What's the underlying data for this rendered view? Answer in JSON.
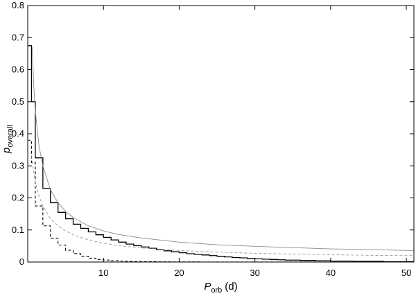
{
  "chart_data": {
    "type": "line",
    "xlabel": "P",
    "xlabel_sub": "orb",
    "xlabel_unit": "(d)",
    "ylabel": "p",
    "ylabel_sub": "overall",
    "xlim": [
      0,
      51
    ],
    "ylim": [
      0,
      0.8
    ],
    "xticks": [
      10,
      20,
      30,
      40,
      50
    ],
    "yticks": [
      0,
      0.1,
      0.2,
      0.3,
      0.4,
      0.5,
      0.6,
      0.7,
      0.8
    ],
    "grid": false,
    "series": [
      {
        "style": "step-solid-black",
        "bin_edges": [
          0,
          0.5,
          1,
          2,
          3,
          4,
          5,
          6,
          7,
          8,
          9,
          10,
          11,
          12,
          13,
          14,
          15,
          16,
          17,
          18,
          19,
          20,
          21,
          22,
          23,
          24,
          25,
          26,
          27,
          28,
          29,
          30,
          31,
          32,
          33,
          34,
          35,
          36,
          37,
          38,
          39,
          40,
          41,
          42,
          43,
          44,
          45,
          46,
          47,
          48,
          49,
          50,
          51
        ],
        "values": [
          0.675,
          0.5,
          0.325,
          0.23,
          0.185,
          0.155,
          0.135,
          0.118,
          0.105,
          0.094,
          0.085,
          0.077,
          0.069,
          0.062,
          0.056,
          0.051,
          0.047,
          0.043,
          0.039,
          0.035,
          0.032,
          0.029,
          0.026,
          0.024,
          0.022,
          0.02,
          0.018,
          0.016,
          0.014,
          0.013,
          0.011,
          0.01,
          0.009,
          0.008,
          0.007,
          0.006,
          0.006,
          0.005,
          0.005,
          0.004,
          0.004,
          0.003,
          0.003,
          0.003,
          0.002,
          0.002,
          0.002,
          0.002,
          0.001,
          0.001,
          0.001,
          0.001
        ]
      },
      {
        "style": "step-dashed-black",
        "bin_edges": [
          0,
          0.5,
          1,
          2,
          3,
          4,
          5,
          6,
          7,
          8,
          9,
          10,
          11,
          12,
          13,
          14,
          15,
          16,
          17,
          18,
          19,
          20,
          21,
          22,
          23,
          24,
          25,
          26,
          27,
          28,
          29,
          30,
          31,
          32,
          33,
          34,
          35,
          36,
          37,
          38,
          39,
          40,
          41,
          42,
          43,
          44,
          45,
          46,
          47,
          48,
          49,
          50,
          51
        ],
        "values": [
          0.38,
          0.31,
          0.175,
          0.113,
          0.074,
          0.053,
          0.037,
          0.026,
          0.018,
          0.012,
          0.008,
          0.006,
          0.004,
          0.003,
          0.002,
          0.0015,
          0.001,
          0.001,
          0.0008,
          0.0006,
          0.0005,
          0.0004,
          0.0003,
          0.0003,
          0.0002,
          0.0002,
          0.0002,
          0.0001,
          0.0001,
          0.0001,
          0.0001,
          0.0001,
          0.0001,
          0.0001,
          0.0001,
          0.0001,
          0.0001,
          0.0001,
          0.0001,
          0.0001,
          0.0001,
          0.0001,
          0.0001,
          0.0001,
          0.0001,
          0.0001,
          0.0001,
          0.0001,
          0.0001,
          0.0001,
          0.0001,
          0.0001
        ]
      },
      {
        "style": "curve-solid-gray",
        "x": [
          0.6,
          0.8,
          1,
          1.5,
          2,
          3,
          4,
          5,
          6,
          8,
          10,
          12,
          15,
          20,
          25,
          30,
          35,
          40,
          45,
          50,
          51
        ],
        "y": [
          0.67,
          0.55,
          0.47,
          0.36,
          0.3,
          0.225,
          0.185,
          0.158,
          0.139,
          0.113,
          0.097,
          0.086,
          0.075,
          0.062,
          0.054,
          0.049,
          0.045,
          0.041,
          0.039,
          0.036,
          0.036
        ]
      },
      {
        "style": "curve-dashed-gray",
        "x": [
          0.5,
          0.7,
          1,
          1.5,
          2,
          3,
          4,
          5,
          6,
          8,
          10,
          12,
          15,
          20,
          25,
          30,
          35,
          40,
          45,
          50,
          51
        ],
        "y": [
          0.33,
          0.295,
          0.25,
          0.205,
          0.175,
          0.135,
          0.113,
          0.097,
          0.085,
          0.069,
          0.059,
          0.051,
          0.044,
          0.036,
          0.031,
          0.027,
          0.025,
          0.023,
          0.021,
          0.02,
          0.02
        ]
      }
    ]
  }
}
